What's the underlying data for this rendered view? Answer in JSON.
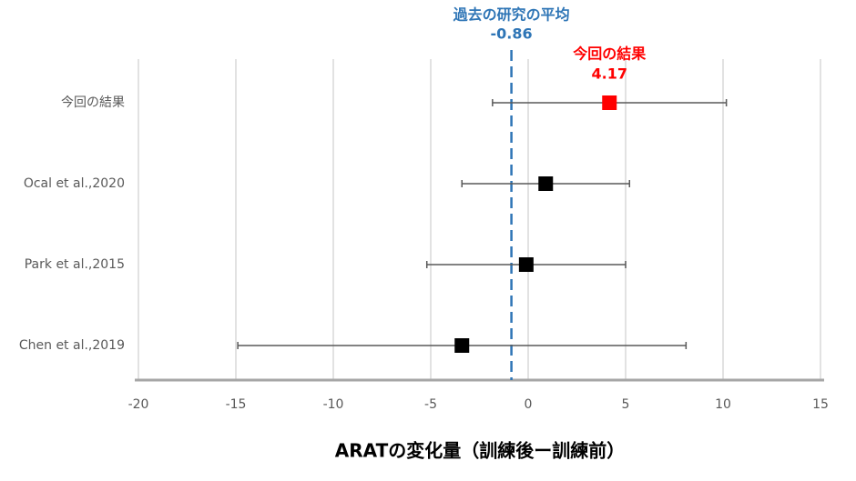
{
  "chart_data": {
    "type": "forest",
    "categories": [
      "今回の結果",
      "Ocal et al.,2020",
      "Park et al.,2015",
      "Chen et al.,2019"
    ],
    "values": [
      4.17,
      0.9,
      -0.1,
      -3.4
    ],
    "errors": [
      6.0,
      4.3,
      5.1,
      11.5
    ],
    "colors": [
      "#ff0000",
      "#000000",
      "#000000",
      "#000000"
    ],
    "reference_line": {
      "label": "過去の研究の平均",
      "value": -0.86,
      "color": "#2e75b6"
    },
    "xlabel": "ARATの変化量（訓練後ー訓練前）",
    "xlim": [
      -20,
      15
    ],
    "xticks": [
      -20,
      -15,
      -10,
      -5,
      0,
      5,
      10,
      15
    ],
    "grid": true
  }
}
